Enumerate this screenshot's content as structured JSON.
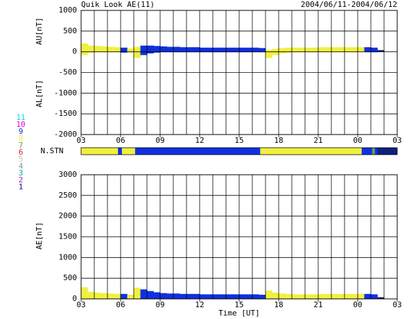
{
  "chart_data": [
    {
      "type": "area",
      "title": "Quik Look AE(11)",
      "subtitle": "2004/06/11-2004/06/12",
      "ylabels": [
        "AU[nT]",
        "AL[nT]"
      ],
      "x": [
        0,
        0.5,
        1,
        1.5,
        2,
        2.5,
        3,
        3.5,
        4,
        4.5,
        5,
        5.5,
        6,
        6.5,
        7,
        7.5,
        8,
        8.5,
        9,
        9.5,
        10,
        10.5,
        11,
        11.5,
        12,
        12.5,
        13,
        13.5,
        14,
        14.5,
        15,
        15.5,
        16,
        16.5,
        17,
        17.5,
        18,
        18.5,
        19,
        19.5,
        20,
        20.5,
        21,
        21.5,
        22,
        22.5
      ],
      "au": [
        200,
        150,
        140,
        130,
        120,
        110,
        100,
        80,
        120,
        150,
        150,
        140,
        130,
        120,
        120,
        110,
        110,
        110,
        100,
        100,
        100,
        100,
        100,
        100,
        100,
        100,
        100,
        90,
        50,
        70,
        90,
        100,
        100,
        100,
        100,
        100,
        110,
        110,
        110,
        110,
        110,
        110,
        110,
        110,
        100,
        40
      ],
      "al": [
        -80,
        -20,
        -10,
        -10,
        -10,
        -10,
        -20,
        -20,
        -150,
        -80,
        -40,
        -20,
        -10,
        -10,
        -10,
        -10,
        -10,
        -10,
        -10,
        -10,
        -10,
        -10,
        -10,
        -10,
        -10,
        -10,
        -10,
        -10,
        -150,
        -80,
        -40,
        -20,
        -10,
        -10,
        -10,
        -10,
        -10,
        -10,
        -10,
        -10,
        -10,
        -10,
        -10,
        -10,
        -10,
        0
      ],
      "xlim": [
        0,
        24
      ],
      "xticks": [
        {
          "value": 0,
          "label": "03"
        },
        {
          "value": 3,
          "label": "06"
        },
        {
          "value": 6,
          "label": "09"
        },
        {
          "value": 9,
          "label": "12"
        },
        {
          "value": 12,
          "label": "15"
        },
        {
          "value": 15,
          "label": "18"
        },
        {
          "value": 18,
          "label": "21"
        },
        {
          "value": 21,
          "label": "00"
        },
        {
          "value": 24,
          "label": "03"
        }
      ],
      "xminor_step": 1,
      "ylim": [
        -2000,
        1000
      ],
      "yticks": [
        -2000,
        -1500,
        -1000,
        -500,
        0,
        500,
        1000
      ],
      "grid": true
    },
    {
      "type": "timeline",
      "label": "N.STN",
      "segments": [
        {
          "start": 0,
          "end": 2.8,
          "stations": 8
        },
        {
          "start": 2.8,
          "end": 3.1,
          "stations": 9
        },
        {
          "start": 3.1,
          "end": 4.1,
          "stations": 8
        },
        {
          "start": 4.1,
          "end": 13.6,
          "stations": 9
        },
        {
          "start": 13.6,
          "end": 21.3,
          "stations": 8
        },
        {
          "start": 21.3,
          "end": 22.1,
          "stations": 9
        },
        {
          "start": 22.1,
          "end": 22.3,
          "stations": 7
        },
        {
          "start": 22.3,
          "end": 22.5,
          "stations": 9
        },
        {
          "start": 22.5,
          "end": 24,
          "stations": 1
        }
      ],
      "legend": [
        {
          "label": "11",
          "color": "#00e0e0"
        },
        {
          "label": "10",
          "color": "#e000e0"
        },
        {
          "label": "9",
          "color": "#1030e0"
        },
        {
          "label": "8",
          "color": "#f0f040"
        },
        {
          "label": "7",
          "color": "#60a040"
        },
        {
          "label": "6",
          "color": "#e02020"
        },
        {
          "label": "5",
          "color": "#c0c0c0"
        },
        {
          "label": "4",
          "color": "#909090"
        },
        {
          "label": "3",
          "color": "#10a0a0"
        },
        {
          "label": "2",
          "color": "#a020c0"
        },
        {
          "label": "1",
          "color": "#102080"
        }
      ]
    },
    {
      "type": "area",
      "ylabel": "AE[nT]",
      "xlabel": "Time [UT]",
      "x": [
        0,
        0.5,
        1,
        1.5,
        2,
        2.5,
        3,
        3.5,
        4,
        4.5,
        5,
        5.5,
        6,
        6.5,
        7,
        7.5,
        8,
        8.5,
        9,
        9.5,
        10,
        10.5,
        11,
        11.5,
        12,
        12.5,
        13,
        13.5,
        14,
        14.5,
        15,
        15.5,
        16,
        16.5,
        17,
        17.5,
        18,
        18.5,
        19,
        19.5,
        20,
        20.5,
        21,
        21.5,
        22,
        22.5
      ],
      "ae": [
        280,
        170,
        150,
        140,
        130,
        120,
        120,
        100,
        270,
        230,
        190,
        160,
        140,
        130,
        130,
        120,
        120,
        120,
        110,
        110,
        110,
        110,
        110,
        110,
        110,
        110,
        110,
        100,
        200,
        150,
        130,
        120,
        110,
        110,
        110,
        110,
        120,
        120,
        120,
        120,
        120,
        120,
        120,
        120,
        110,
        40
      ],
      "xlim": [
        0,
        24
      ],
      "xticks": [
        {
          "value": 0,
          "label": "03"
        },
        {
          "value": 3,
          "label": "06"
        },
        {
          "value": 6,
          "label": "09"
        },
        {
          "value": 9,
          "label": "12"
        },
        {
          "value": 12,
          "label": "15"
        },
        {
          "value": 15,
          "label": "18"
        },
        {
          "value": 18,
          "label": "21"
        },
        {
          "value": 21,
          "label": "00"
        },
        {
          "value": 24,
          "label": "03"
        }
      ],
      "xminor_step": 1,
      "ylim": [
        0,
        3000
      ],
      "yticks": [
        0,
        500,
        1000,
        1500,
        2000,
        2500,
        3000
      ],
      "grid": true
    }
  ]
}
